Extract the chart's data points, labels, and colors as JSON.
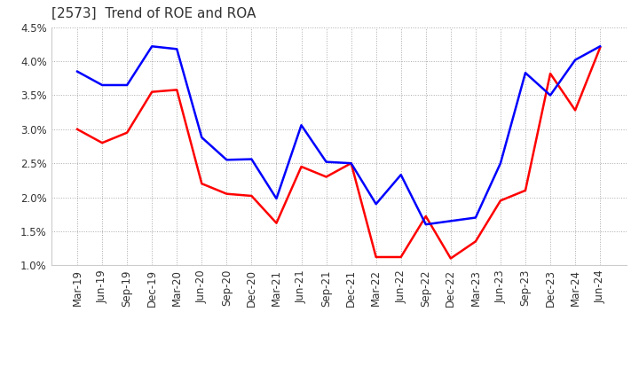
{
  "title": "[2573]  Trend of ROE and ROA",
  "labels": [
    "Mar-19",
    "Jun-19",
    "Sep-19",
    "Dec-19",
    "Mar-20",
    "Jun-20",
    "Sep-20",
    "Dec-20",
    "Mar-21",
    "Jun-21",
    "Sep-21",
    "Dec-21",
    "Mar-22",
    "Jun-22",
    "Sep-22",
    "Dec-22",
    "Mar-23",
    "Jun-23",
    "Sep-23",
    "Dec-23",
    "Mar-24",
    "Jun-24"
  ],
  "roe": [
    3.0,
    2.8,
    2.95,
    3.55,
    3.58,
    2.2,
    2.05,
    2.02,
    1.62,
    2.45,
    2.3,
    2.5,
    1.12,
    1.12,
    1.72,
    1.1,
    1.35,
    1.95,
    2.1,
    3.82,
    3.28,
    4.2
  ],
  "roa": [
    3.85,
    3.65,
    3.65,
    4.22,
    4.18,
    2.88,
    2.55,
    2.56,
    1.98,
    3.06,
    2.52,
    2.5,
    1.9,
    2.33,
    1.6,
    1.65,
    1.7,
    2.5,
    3.83,
    3.5,
    4.02,
    4.22
  ],
  "roe_color": "#ff0000",
  "roa_color": "#0000ff",
  "ylim": [
    1.0,
    4.5
  ],
  "yticks": [
    1.0,
    1.5,
    2.0,
    2.5,
    3.0,
    3.5,
    4.0,
    4.5
  ],
  "bg_color": "#ffffff",
  "plot_bg_color": "#ffffff",
  "grid_color": "#aaaaaa",
  "line_width": 1.8,
  "title_fontsize": 11,
  "title_color": "#333333",
  "tick_fontsize": 8.5,
  "legend_fontsize": 10
}
